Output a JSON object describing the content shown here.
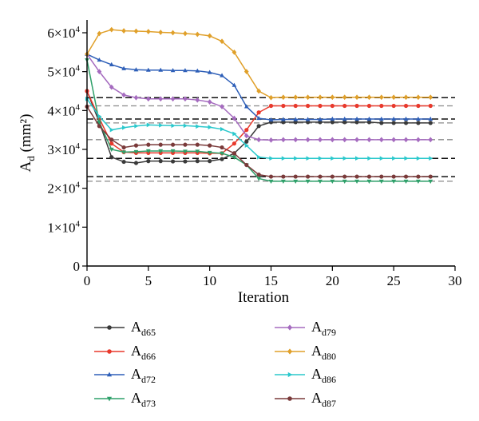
{
  "chart_data": {
    "type": "line",
    "xlabel": "Iteration",
    "ylabel_main": "A",
    "ylabel_sub": "d",
    "ylabel_unit": " (mm²)",
    "xlim": [
      0,
      30
    ],
    "ylim": [
      0,
      60000
    ],
    "xticks": [
      0,
      5,
      10,
      15,
      20,
      25,
      30
    ],
    "xtick_labels": [
      "0",
      "5",
      "10",
      "15",
      "20",
      "25",
      "30"
    ],
    "yticks": [
      0,
      10000,
      20000,
      30000,
      40000,
      50000,
      60000
    ],
    "ytick_labels": [
      {
        "mantissa": "0",
        "exp": ""
      },
      {
        "mantissa": "1×10",
        "exp": "4"
      },
      {
        "mantissa": "2×10",
        "exp": "4"
      },
      {
        "mantissa": "3×10",
        "exp": "4"
      },
      {
        "mantissa": "4×10",
        "exp": "4"
      },
      {
        "mantissa": "5×10",
        "exp": "4"
      },
      {
        "mantissa": "6×10",
        "exp": "4"
      }
    ],
    "grid": false,
    "legend_position": "bottom",
    "reference_lines": {
      "black_dashed": [
        43300,
        37800,
        27700,
        23000
      ],
      "gray_dashed": [
        41200,
        36800,
        32500,
        21800
      ]
    },
    "x": [
      0,
      1,
      2,
      3,
      4,
      5,
      6,
      7,
      8,
      9,
      10,
      11,
      12,
      13,
      14,
      15,
      16,
      17,
      18,
      19,
      20,
      21,
      22,
      23,
      24,
      25,
      26,
      27,
      28
    ],
    "series": [
      {
        "name_main": "A",
        "name_sub": "d65",
        "color": "#3a3a3a",
        "marker": "circle",
        "values": [
          45000,
          37000,
          28000,
          26800,
          26500,
          27000,
          27000,
          26900,
          26900,
          27000,
          27000,
          27500,
          29000,
          32000,
          36000,
          37000,
          37000,
          37000,
          37000,
          37000,
          37000,
          37000,
          37000,
          37000,
          36800,
          36800,
          36800,
          36800,
          36800
        ]
      },
      {
        "name_main": "A",
        "name_sub": "d66",
        "color": "#e8392c",
        "marker": "circle",
        "values": [
          45000,
          38000,
          31500,
          29300,
          29100,
          29100,
          29100,
          29100,
          29100,
          29100,
          29000,
          29000,
          31500,
          35000,
          39500,
          41200,
          41200,
          41200,
          41200,
          41200,
          41200,
          41200,
          41200,
          41200,
          41200,
          41200,
          41200,
          41200,
          41200
        ]
      },
      {
        "name_main": "A",
        "name_sub": "d72",
        "color": "#2e5fb8",
        "marker": "triangle",
        "values": [
          54500,
          53000,
          51800,
          50800,
          50500,
          50400,
          50400,
          50300,
          50300,
          50200,
          49800,
          49000,
          46500,
          41000,
          38000,
          37600,
          37700,
          37700,
          37700,
          37700,
          37800,
          37800,
          37800,
          37800,
          37800,
          37800,
          37800,
          37800,
          37800
        ]
      },
      {
        "name_main": "A",
        "name_sub": "d73",
        "color": "#2fa06a",
        "marker": "triangle-down",
        "values": [
          53000,
          37000,
          30000,
          29300,
          29400,
          29600,
          29600,
          29600,
          29500,
          29500,
          29200,
          29000,
          28000,
          26000,
          22500,
          21800,
          21800,
          21800,
          21800,
          21800,
          21800,
          21800,
          21800,
          21800,
          21800,
          21800,
          21800,
          21800,
          21800
        ]
      },
      {
        "name_main": "A",
        "name_sub": "d79",
        "color": "#a56bbf",
        "marker": "diamond",
        "values": [
          54500,
          50000,
          46000,
          44000,
          43300,
          43000,
          43000,
          43000,
          43000,
          42700,
          42200,
          41000,
          38000,
          33500,
          32500,
          32400,
          32500,
          32500,
          32500,
          32500,
          32500,
          32500,
          32500,
          32500,
          32500,
          32500,
          32500,
          32500,
          32500
        ]
      },
      {
        "name_main": "A",
        "name_sub": "d80",
        "color": "#e0a02a",
        "marker": "diamond",
        "values": [
          54500,
          59800,
          60800,
          60500,
          60400,
          60300,
          60100,
          60000,
          59800,
          59600,
          59200,
          57800,
          55000,
          50000,
          45000,
          43300,
          43400,
          43400,
          43400,
          43400,
          43400,
          43400,
          43400,
          43400,
          43400,
          43400,
          43400,
          43400,
          43400
        ]
      },
      {
        "name_main": "A",
        "name_sub": "d86",
        "color": "#2ac8cc",
        "marker": "triangle-right",
        "values": [
          43000,
          38500,
          35000,
          35600,
          36000,
          36300,
          36200,
          36100,
          36100,
          35900,
          35700,
          35200,
          34000,
          31000,
          28000,
          27700,
          27700,
          27700,
          27700,
          27700,
          27700,
          27700,
          27700,
          27700,
          27700,
          27700,
          27700,
          27700,
          27700
        ]
      },
      {
        "name_main": "A",
        "name_sub": "d87",
        "color": "#7a3a3a",
        "marker": "circle",
        "values": [
          41000,
          36000,
          32500,
          30500,
          31000,
          31200,
          31200,
          31200,
          31200,
          31200,
          31000,
          30500,
          29000,
          26000,
          23500,
          23000,
          23000,
          23000,
          23000,
          23000,
          23000,
          23000,
          23000,
          23000,
          23000,
          23000,
          23000,
          23000,
          23000
        ]
      }
    ],
    "legend_order": [
      0,
      4,
      1,
      5,
      2,
      6,
      3,
      7
    ]
  }
}
